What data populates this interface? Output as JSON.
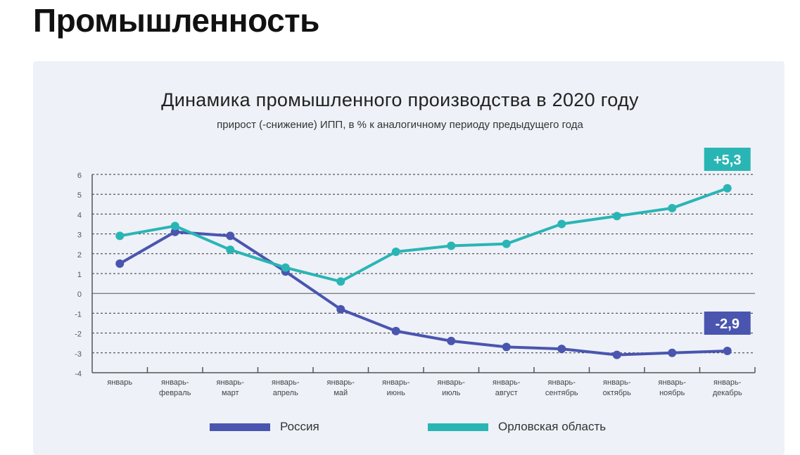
{
  "page_title": "Промышленность",
  "chart_data": {
    "type": "line",
    "title": "Динамика промышленного производства в 2020 году",
    "subtitle": "прирост (-снижение) ИПП, в % к аналогичному периоду предыдущего года",
    "categories": [
      [
        "январь",
        ""
      ],
      [
        "январь-",
        "февраль"
      ],
      [
        "январь-",
        "март"
      ],
      [
        "январь-",
        "апрель"
      ],
      [
        "январь-",
        "май"
      ],
      [
        "январь-",
        "июнь"
      ],
      [
        "январь-",
        "июль"
      ],
      [
        "январь-",
        "август"
      ],
      [
        "январь-",
        "сентябрь"
      ],
      [
        "январь-",
        "октябрь"
      ],
      [
        "январь-",
        "ноябрь"
      ],
      [
        "январь-",
        "декабрь"
      ]
    ],
    "ylim": [
      -4,
      6
    ],
    "yticks": [
      "6",
      "5",
      "4",
      "3",
      "2",
      "1",
      "0",
      "-1",
      "-2",
      "-3",
      "-4"
    ],
    "grid": true,
    "legend_position": "bottom",
    "series": [
      {
        "name": "Россия",
        "color": "#4a55b0",
        "values": [
          1.5,
          3.1,
          2.9,
          1.1,
          -0.8,
          -1.9,
          -2.4,
          -2.7,
          -2.8,
          -3.1,
          -3.0,
          -2.9
        ],
        "end_label": "-2,9"
      },
      {
        "name": "Орловская область",
        "color": "#2ab5b5",
        "values": [
          2.9,
          3.4,
          2.2,
          1.3,
          0.6,
          2.1,
          2.4,
          2.5,
          3.5,
          3.9,
          4.3,
          5.3
        ],
        "end_label": "+5,3"
      }
    ]
  }
}
